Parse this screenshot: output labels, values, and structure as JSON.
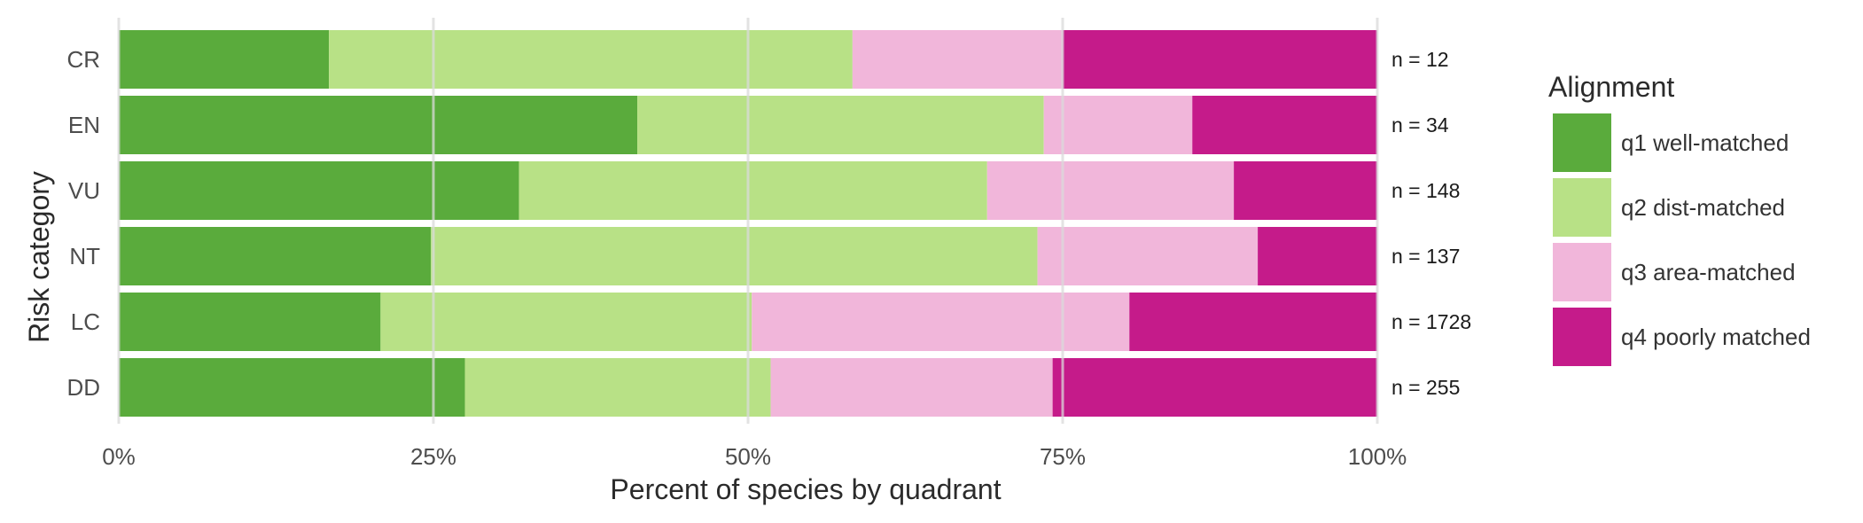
{
  "chart_data": {
    "type": "bar",
    "orientation": "horizontal",
    "stacked": "percent",
    "categories": [
      "CR",
      "EN",
      "VU",
      "NT",
      "LC",
      "DD"
    ],
    "series": [
      {
        "name": "q1 well-matched",
        "color": "#5aab3c",
        "values": [
          16.7,
          41.2,
          31.8,
          24.8,
          20.8,
          27.5
        ]
      },
      {
        "name": "q2 dist-matched",
        "color": "#b8e186",
        "values": [
          41.6,
          32.3,
          37.2,
          48.2,
          29.5,
          24.3
        ]
      },
      {
        "name": "q3 area-matched",
        "color": "#f1b6da",
        "values": [
          16.7,
          11.8,
          19.6,
          17.5,
          30.0,
          22.4
        ]
      },
      {
        "name": "q4 poorly matched",
        "color": "#c51b8a",
        "values": [
          25.0,
          14.7,
          11.4,
          9.5,
          19.7,
          25.8
        ]
      }
    ],
    "n_labels": [
      "n = 12",
      "n = 34",
      "n = 148",
      "n = 137",
      "n = 1728",
      "n = 255"
    ],
    "xlabel": "Percent of species by quadrant",
    "ylabel": "Risk category",
    "xlim": [
      0,
      100
    ],
    "xticks": [
      0,
      25,
      50,
      75,
      100
    ],
    "xtick_labels": [
      "0%",
      "25%",
      "50%",
      "75%",
      "100%"
    ],
    "grid": true,
    "legend_title": "Alignment",
    "legend_position": "right"
  }
}
